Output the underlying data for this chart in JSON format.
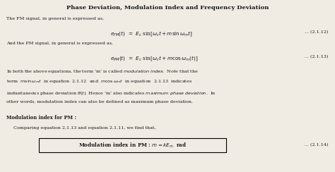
{
  "title": "Phase Deviation, Modulation Index and Frequency Deviation",
  "bg_color": "#f0ece4",
  "text_color": "#1a1a1a",
  "figsize": [
    4.74,
    2.44
  ],
  "dpi": 100,
  "fs_title": 6.0,
  "fs_body": 4.6,
  "fs_eq": 5.2,
  "line1": "The FM signal, in general is expressed as,",
  "eq1": "$e_{FM}(t)$  =  $E_c$ sin$[\\omega_c t + m\\sin\\omega_m t]$",
  "eq1_num": "... (2.1.12)",
  "line2": "And the PM signal, in general is expressed as,",
  "eq2": "$e_{PM}(t)$  =  $E_c$ sin$[\\omega_c t + m\\cos\\omega_m(t)]$",
  "eq2_num": "... (2.1.13)",
  "para1": "In both the above equations, the term ‘m’ is called $\\it{modulation\\ index}$.  Note that the",
  "para2": "term  $m\\sin\\omega_m t$  in equation  2.1.12  and  $m\\cos\\omega_m t$  in equation  2.1.13  indicates",
  "para3": "instantaneous phase deviation $\\theta(t)$. Hence ‘m’ also indicates $\\it{maximum\\ phase\\ deviation}$.  In",
  "para4": "other words, modulation index can also be defined as maximum phase deviation.",
  "heading": "Modulation index for PM :",
  "compare": "Comparing equation 2.1.13 and equation 2.1.11, we find that,",
  "box_text": "Modulation index in PM : $m = kE_m$  rad",
  "box_num": "... (2.1.14)"
}
